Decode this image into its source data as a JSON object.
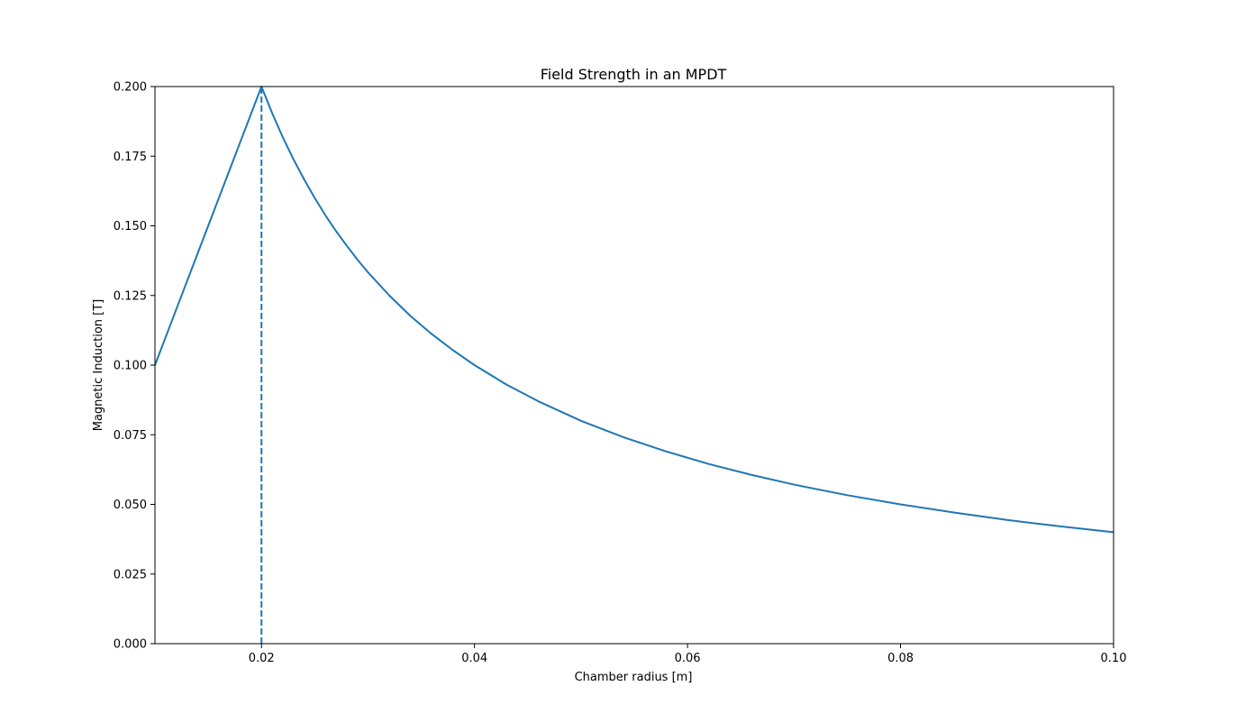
{
  "chart_data": {
    "type": "line",
    "title": "Field Strength in an MPDT",
    "xlabel": "Chamber radius [m]",
    "ylabel": "Magnetic Induction [T]",
    "xlim": [
      0.01,
      0.1
    ],
    "ylim": [
      0.0,
      0.2
    ],
    "grid": false,
    "legend": "none",
    "x_ticks": [
      {
        "value": 0.02,
        "label": "0.02"
      },
      {
        "value": 0.04,
        "label": "0.04"
      },
      {
        "value": 0.06,
        "label": "0.06"
      },
      {
        "value": 0.08,
        "label": "0.08"
      },
      {
        "value": 0.1,
        "label": "0.10"
      }
    ],
    "y_ticks": [
      {
        "value": 0.0,
        "label": "0.000"
      },
      {
        "value": 0.025,
        "label": "0.025"
      },
      {
        "value": 0.05,
        "label": "0.050"
      },
      {
        "value": 0.075,
        "label": "0.075"
      },
      {
        "value": 0.1,
        "label": "0.100"
      },
      {
        "value": 0.125,
        "label": "0.125"
      },
      {
        "value": 0.15,
        "label": "0.150"
      },
      {
        "value": 0.175,
        "label": "0.175"
      },
      {
        "value": 0.2,
        "label": "0.200"
      }
    ],
    "series": [
      {
        "color": "#1f77b4",
        "style": "solid",
        "x": [
          0.01,
          0.012,
          0.014,
          0.016,
          0.018,
          0.02,
          0.021,
          0.022,
          0.023,
          0.024,
          0.025,
          0.026,
          0.027,
          0.028,
          0.029,
          0.03,
          0.032,
          0.034,
          0.036,
          0.038,
          0.04,
          0.043,
          0.046,
          0.05,
          0.054,
          0.058,
          0.062,
          0.066,
          0.07,
          0.075,
          0.08,
          0.085,
          0.09,
          0.095,
          0.1
        ],
        "y": [
          0.1,
          0.12,
          0.14,
          0.16,
          0.18,
          0.2,
          0.1905,
          0.1818,
          0.1739,
          0.1667,
          0.16,
          0.1538,
          0.1481,
          0.1429,
          0.1379,
          0.1333,
          0.125,
          0.1176,
          0.1111,
          0.1053,
          0.1,
          0.093,
          0.087,
          0.08,
          0.0741,
          0.069,
          0.0645,
          0.0606,
          0.0571,
          0.0533,
          0.05,
          0.0471,
          0.0444,
          0.0421,
          0.04
        ]
      }
    ],
    "vertical_lines": [
      {
        "x": 0.02,
        "y_from": 0.0,
        "y_to": 0.2,
        "color": "#1f77b4",
        "style": "dashed"
      }
    ]
  }
}
